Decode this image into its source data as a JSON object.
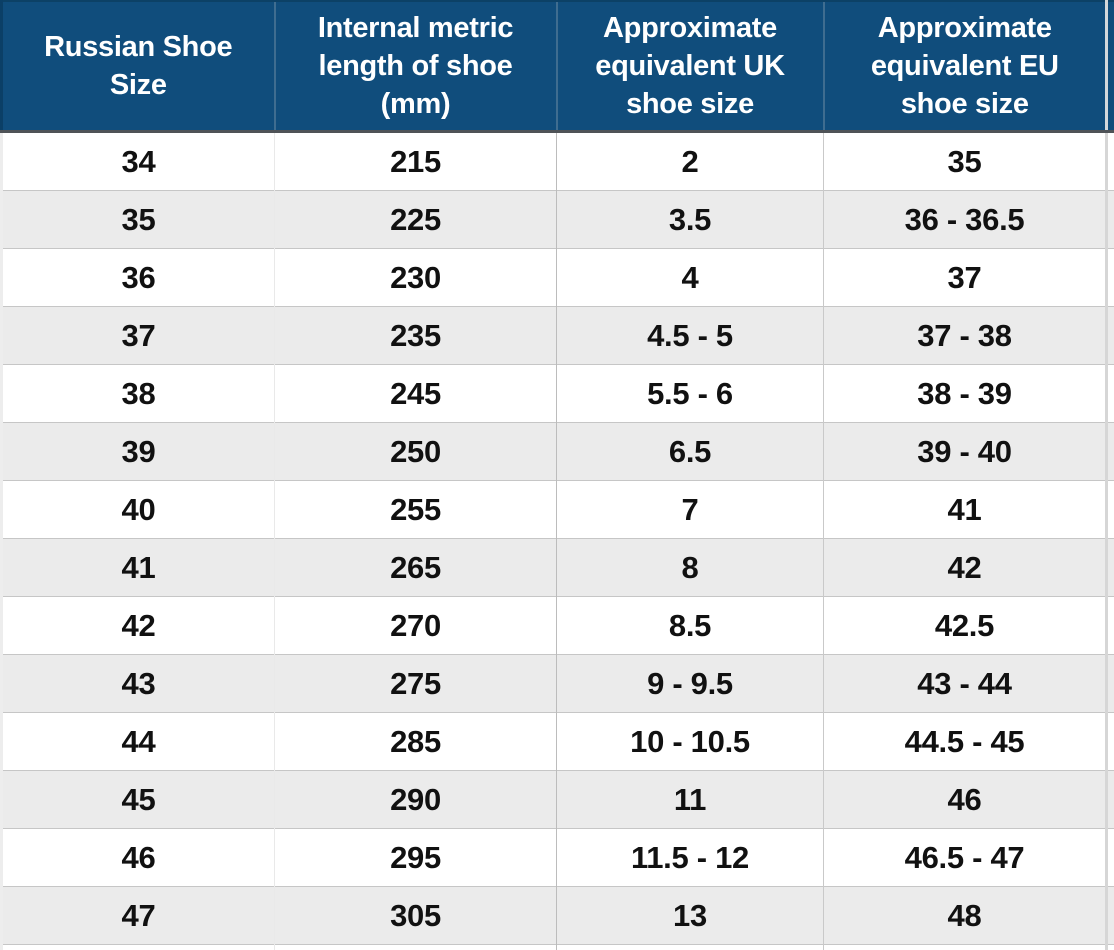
{
  "chart_data": {
    "type": "table",
    "title": "",
    "columns": [
      "Russian Shoe Size",
      "Internal metric length of shoe (mm)",
      "Approximate equivalent UK shoe size",
      "Approximate equivalent EU shoe size"
    ],
    "rows": [
      [
        "34",
        "215",
        "2",
        "35"
      ],
      [
        "35",
        "225",
        "3.5",
        "36 - 36.5"
      ],
      [
        "36",
        "230",
        "4",
        "37"
      ],
      [
        "37",
        "235",
        "4.5 - 5",
        "37 - 38"
      ],
      [
        "38",
        "245",
        "5.5 - 6",
        "38 - 39"
      ],
      [
        "39",
        "250",
        "6.5",
        "39 - 40"
      ],
      [
        "40",
        "255",
        "7",
        "41"
      ],
      [
        "41",
        "265",
        "8",
        "42"
      ],
      [
        "42",
        "270",
        "8.5",
        "42.5"
      ],
      [
        "43",
        "275",
        "9 - 9.5",
        "43 - 44"
      ],
      [
        "44",
        "285",
        "10 - 10.5",
        "44.5 - 45"
      ],
      [
        "45",
        "290",
        "11",
        "46"
      ],
      [
        "46",
        "295",
        "11.5 - 12",
        "46.5 - 47"
      ],
      [
        "47",
        "305",
        "13",
        "48"
      ]
    ]
  },
  "colors": {
    "header_background": "#104d7c",
    "header_text": "#ffffff",
    "row_alternate": "#ebebeb",
    "row_default": "#ffffff",
    "body_text": "#111111",
    "header_divider": "#4f5357",
    "grid_line": "#c6c6c6"
  }
}
